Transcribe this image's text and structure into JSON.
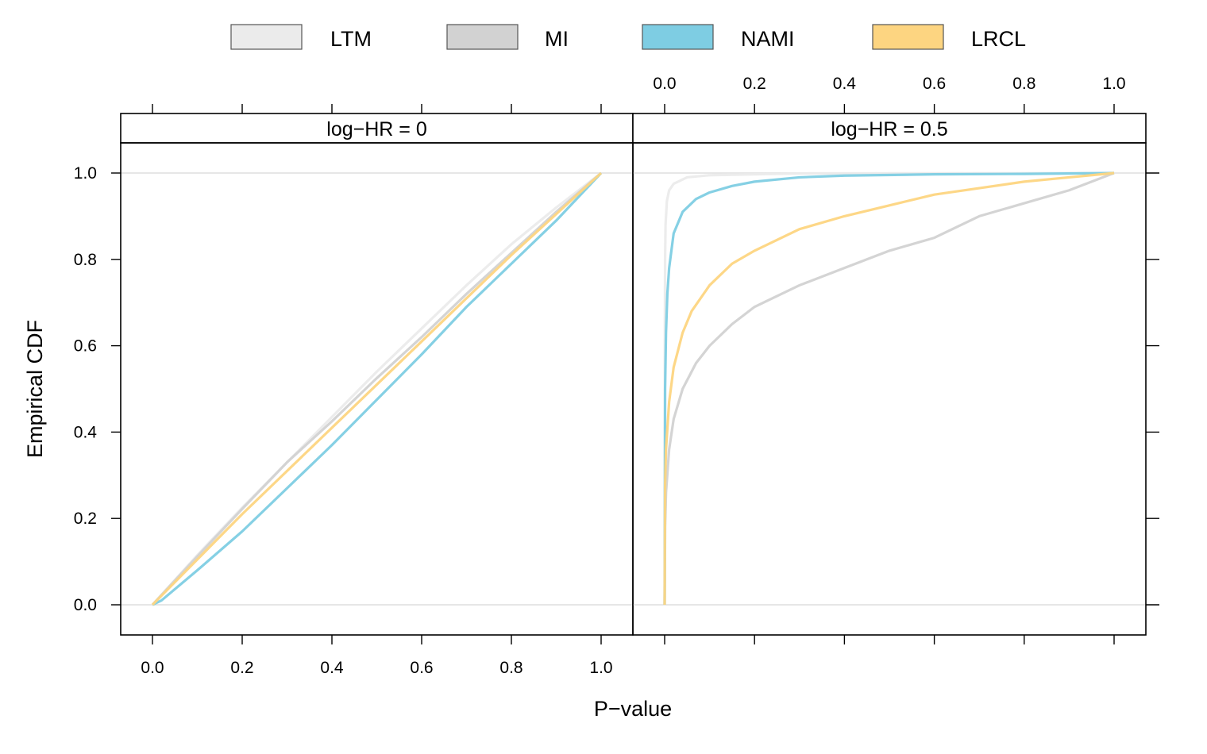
{
  "chart_data": {
    "type": "line",
    "xlabel": "P−value",
    "ylabel": "Empirical CDF",
    "xlim": [
      0,
      1
    ],
    "ylim": [
      0,
      1
    ],
    "x_ticks": [
      "0.0",
      "0.2",
      "0.4",
      "0.6",
      "0.8",
      "1.0"
    ],
    "y_ticks": [
      "0.0",
      "0.2",
      "0.4",
      "0.6",
      "0.8",
      "1.0"
    ],
    "reference_lines_y": [
      0,
      1
    ],
    "legend": {
      "position": "top",
      "items": [
        {
          "name": "LTM",
          "color": "#ebebeb"
        },
        {
          "name": "MI",
          "color": "#d2d2d2"
        },
        {
          "name": "NAMI",
          "color": "#7ecde3"
        },
        {
          "name": "LRCL",
          "color": "#fdd581"
        }
      ]
    },
    "panels": [
      {
        "strip": "log−HR = 0",
        "series": [
          {
            "name": "LTM",
            "color": "#ebebeb",
            "points": [
              [
                0,
                0
              ],
              [
                0.1,
                0.115
              ],
              [
                0.2,
                0.225
              ],
              [
                0.3,
                0.33
              ],
              [
                0.4,
                0.435
              ],
              [
                0.5,
                0.54
              ],
              [
                0.6,
                0.64
              ],
              [
                0.7,
                0.74
              ],
              [
                0.8,
                0.835
              ],
              [
                0.9,
                0.92
              ],
              [
                1,
                1
              ]
            ]
          },
          {
            "name": "MI",
            "color": "#d2d2d2",
            "points": [
              [
                0,
                0
              ],
              [
                0.1,
                0.112
              ],
              [
                0.2,
                0.222
              ],
              [
                0.3,
                0.33
              ],
              [
                0.4,
                0.425
              ],
              [
                0.5,
                0.525
              ],
              [
                0.6,
                0.62
              ],
              [
                0.7,
                0.72
              ],
              [
                0.8,
                0.815
              ],
              [
                0.9,
                0.91
              ],
              [
                1,
                1
              ]
            ]
          },
          {
            "name": "NAMI",
            "color": "#7ecde3",
            "points": [
              [
                0,
                0
              ],
              [
                0.02,
                0.01
              ],
              [
                0.1,
                0.08
              ],
              [
                0.2,
                0.17
              ],
              [
                0.3,
                0.27
              ],
              [
                0.4,
                0.37
              ],
              [
                0.5,
                0.475
              ],
              [
                0.6,
                0.58
              ],
              [
                0.7,
                0.69
              ],
              [
                0.8,
                0.79
              ],
              [
                0.9,
                0.89
              ],
              [
                1,
                1
              ]
            ]
          },
          {
            "name": "LRCL",
            "color": "#fdd581",
            "points": [
              [
                0,
                0
              ],
              [
                0.1,
                0.105
              ],
              [
                0.2,
                0.21
              ],
              [
                0.3,
                0.31
              ],
              [
                0.4,
                0.41
              ],
              [
                0.5,
                0.51
              ],
              [
                0.6,
                0.61
              ],
              [
                0.7,
                0.71
              ],
              [
                0.8,
                0.81
              ],
              [
                0.9,
                0.905
              ],
              [
                1,
                1
              ]
            ]
          }
        ]
      },
      {
        "strip": "log−HR = 0.5",
        "series": [
          {
            "name": "LTM",
            "color": "#ebebeb",
            "points": [
              [
                0,
                0
              ],
              [
                0.0005,
                0.6
              ],
              [
                0.001,
                0.8
              ],
              [
                0.002,
                0.88
              ],
              [
                0.005,
                0.935
              ],
              [
                0.01,
                0.96
              ],
              [
                0.02,
                0.975
              ],
              [
                0.05,
                0.99
              ],
              [
                0.1,
                0.995
              ],
              [
                0.3,
                0.999
              ],
              [
                1,
                1
              ]
            ]
          },
          {
            "name": "MI",
            "color": "#d2d2d2",
            "points": [
              [
                0,
                0
              ],
              [
                0.001,
                0.18
              ],
              [
                0.003,
                0.26
              ],
              [
                0.01,
                0.36
              ],
              [
                0.02,
                0.43
              ],
              [
                0.04,
                0.5
              ],
              [
                0.07,
                0.56
              ],
              [
                0.1,
                0.6
              ],
              [
                0.15,
                0.65
              ],
              [
                0.2,
                0.69
              ],
              [
                0.3,
                0.74
              ],
              [
                0.4,
                0.78
              ],
              [
                0.5,
                0.82
              ],
              [
                0.6,
                0.85
              ],
              [
                0.7,
                0.9
              ],
              [
                0.8,
                0.93
              ],
              [
                0.9,
                0.96
              ],
              [
                0.95,
                0.98
              ],
              [
                1,
                1
              ]
            ]
          },
          {
            "name": "NAMI",
            "color": "#7ecde3",
            "points": [
              [
                0,
                0
              ],
              [
                0.001,
                0.5
              ],
              [
                0.003,
                0.63
              ],
              [
                0.006,
                0.72
              ],
              [
                0.01,
                0.78
              ],
              [
                0.02,
                0.86
              ],
              [
                0.04,
                0.91
              ],
              [
                0.07,
                0.94
              ],
              [
                0.1,
                0.955
              ],
              [
                0.15,
                0.97
              ],
              [
                0.2,
                0.98
              ],
              [
                0.3,
                0.99
              ],
              [
                0.4,
                0.994
              ],
              [
                0.6,
                0.997
              ],
              [
                0.8,
                0.998
              ],
              [
                1,
                1
              ]
            ]
          },
          {
            "name": "LRCL",
            "color": "#fdd581",
            "points": [
              [
                0,
                0
              ],
              [
                0.001,
                0.28
              ],
              [
                0.003,
                0.36
              ],
              [
                0.01,
                0.47
              ],
              [
                0.02,
                0.55
              ],
              [
                0.04,
                0.63
              ],
              [
                0.06,
                0.68
              ],
              [
                0.1,
                0.74
              ],
              [
                0.15,
                0.79
              ],
              [
                0.2,
                0.82
              ],
              [
                0.3,
                0.87
              ],
              [
                0.4,
                0.9
              ],
              [
                0.5,
                0.925
              ],
              [
                0.6,
                0.95
              ],
              [
                0.7,
                0.965
              ],
              [
                0.8,
                0.98
              ],
              [
                0.9,
                0.99
              ],
              [
                1,
                1
              ]
            ]
          }
        ]
      }
    ]
  }
}
